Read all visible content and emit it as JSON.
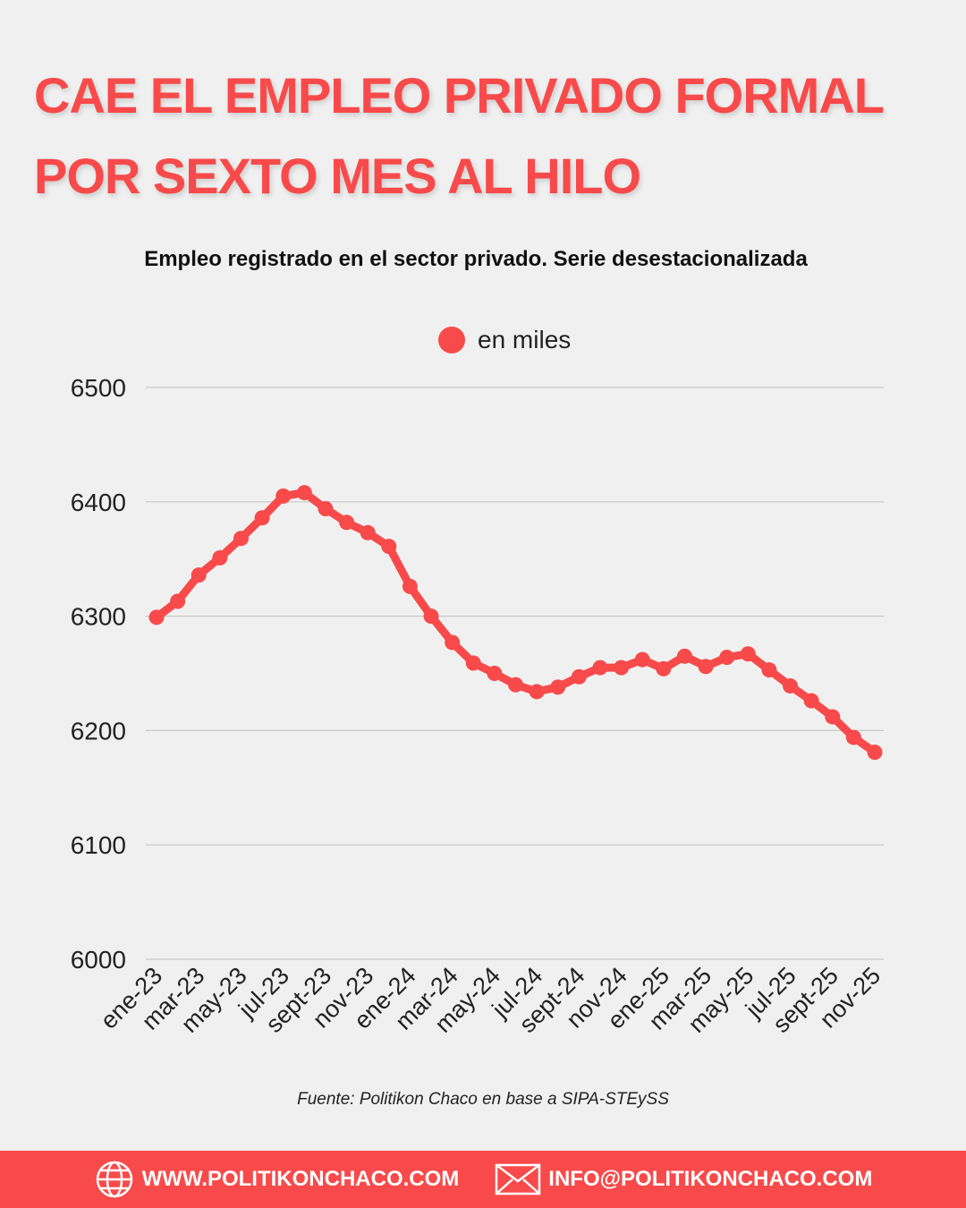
{
  "header": {
    "title_line1": "CAE EL EMPLEO PRIVADO FORMAL",
    "title_line2": "POR SEXTO MES AL HILO"
  },
  "chart_data": {
    "type": "line",
    "title": "Empleo registrado en el sector privado. Serie desestacionalizada",
    "xlabel": "",
    "ylabel": "",
    "ylim": [
      6000,
      6500
    ],
    "yticks": [
      6000,
      6100,
      6200,
      6300,
      6400,
      6500
    ],
    "grid": true,
    "legend_position": "top-center",
    "color": "#f84a4a",
    "x": [
      "ene-23",
      "feb-23",
      "mar-23",
      "abr-23",
      "may-23",
      "jun-23",
      "jul-23",
      "ago-23",
      "sept-23",
      "oct-23",
      "nov-23",
      "dic-23",
      "ene-24",
      "feb-24",
      "mar-24",
      "abr-24",
      "may-24",
      "jun-24",
      "jul-24",
      "ago-24",
      "sept-24",
      "oct-24",
      "nov-24",
      "dic-24",
      "ene-25",
      "feb-25",
      "mar-25",
      "abr-25",
      "may-25",
      "jun-25",
      "jul-25",
      "ago-25",
      "sept-25",
      "oct-25",
      "nov-25"
    ],
    "xtick_labels": [
      "ene-23",
      "mar-23",
      "may-23",
      "jul-23",
      "sept-23",
      "nov-23",
      "ene-24",
      "mar-24",
      "may-24",
      "jul-24",
      "sept-24",
      "nov-24",
      "ene-25",
      "mar-25",
      "may-25",
      "jul-25",
      "sept-25",
      "nov-25"
    ],
    "series": [
      {
        "name": "en miles",
        "values": [
          6299,
          6313,
          6336,
          6351,
          6368,
          6386,
          6405,
          6408,
          6394,
          6382,
          6373,
          6361,
          6326,
          6300,
          6277,
          6259,
          6250,
          6240,
          6234,
          6238,
          6247,
          6255,
          6255,
          6262,
          6254,
          6265,
          6256,
          6264,
          6267,
          6253,
          6239,
          6226,
          6212,
          6194,
          6181
        ]
      }
    ]
  },
  "source": "Fuente: Politikon Chaco en base a SIPA-STEySS",
  "footer": {
    "website": "WWW.POLITIKONCHACO.COM",
    "email": "INFO@POLITIKONCHACO.COM",
    "website_icon": "globe-icon",
    "email_icon": "envelope-icon"
  }
}
